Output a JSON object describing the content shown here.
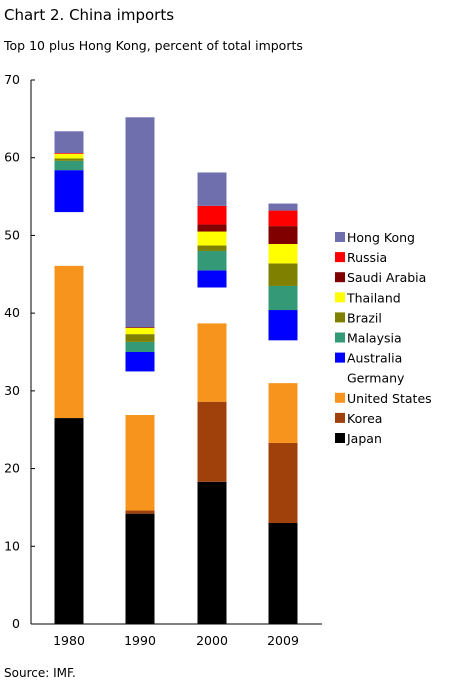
{
  "chart_data": {
    "type": "bar",
    "stacked": true,
    "title": "Chart 2. China imports",
    "subtitle": "Top  10 plus Hong Kong, percent of total imports",
    "source": "Source: IMF.",
    "categories": [
      "1980",
      "1990",
      "2000",
      "2009"
    ],
    "ylim": [
      0,
      70
    ],
    "yticks": [
      0,
      10,
      20,
      30,
      40,
      50,
      60,
      70
    ],
    "grid": false,
    "legend_position": "right",
    "series": [
      {
        "name": "Japan",
        "color": "#000000",
        "values": [
          26.5,
          14.2,
          18.3,
          13.0
        ],
        "show_legend": true
      },
      {
        "name": "Korea",
        "color": "#A0400A",
        "values": [
          0.0,
          0.4,
          10.3,
          10.3
        ],
        "show_legend": true
      },
      {
        "name": "United States",
        "color": "#F7941D",
        "values": [
          19.6,
          12.3,
          10.1,
          7.7
        ],
        "show_legend": true
      },
      {
        "name": "Germany",
        "color": "#FFFFFF",
        "values": [
          6.9,
          5.6,
          4.6,
          5.5
        ],
        "show_legend": true,
        "swatch": false
      },
      {
        "name": "Australia",
        "color": "#0000FF",
        "values": [
          5.4,
          2.5,
          2.2,
          3.9
        ],
        "show_legend": true
      },
      {
        "name": "Malaysia",
        "color": "#339977",
        "values": [
          1.2,
          1.3,
          2.5,
          3.1
        ],
        "show_legend": true
      },
      {
        "name": "Brazil",
        "color": "#808000",
        "values": [
          0.3,
          1.0,
          0.7,
          2.9
        ],
        "show_legend": true
      },
      {
        "name": "Thailand",
        "color": "#FFFF00",
        "values": [
          0.6,
          0.8,
          1.8,
          2.5
        ],
        "show_legend": true
      },
      {
        "name": "Saudi Arabia",
        "color": "#800000",
        "values": [
          0.0,
          0.1,
          0.9,
          2.3
        ],
        "show_legend": true
      },
      {
        "name": "Russia",
        "color": "#FF0000",
        "values": [
          0.1,
          0.0,
          2.4,
          2.0
        ],
        "show_legend": true
      },
      {
        "name": "Hong Kong",
        "color": "#6F6FAD",
        "values": [
          2.8,
          27.0,
          4.3,
          0.9
        ],
        "show_legend": true
      }
    ]
  }
}
